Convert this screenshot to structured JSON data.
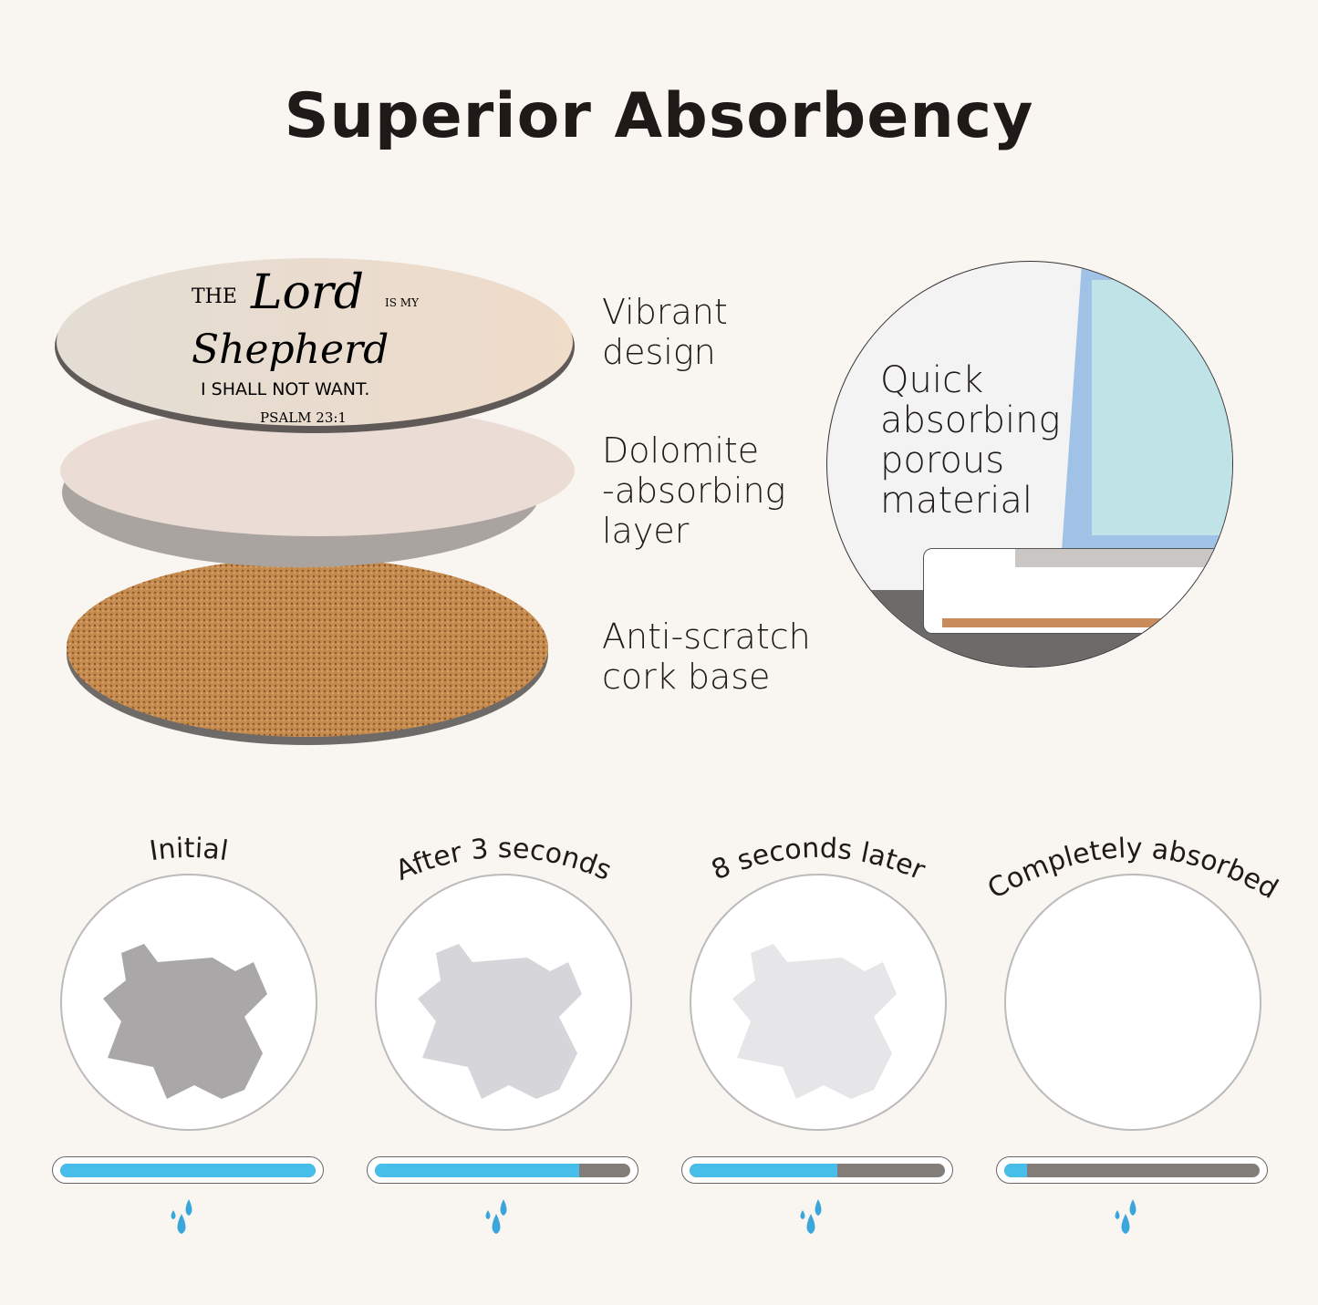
{
  "title": "Superior Absorbency",
  "coaster_print": {
    "line1": "THE",
    "line2": "Lord",
    "line3": "IS MY",
    "line4": "Shepherd",
    "line5": "I SHALL NOT WANT.",
    "reference": "PSALM 23:1"
  },
  "layers": [
    {
      "label": "Vibrant\ndesign"
    },
    {
      "label": "Dolomite\n-absorbing\nlayer"
    },
    {
      "label": "Anti-scratch\ncork base"
    }
  ],
  "callout": {
    "text": "Quick\nabsorbing\nporous\nmaterial"
  },
  "stages": [
    {
      "label": "Initial",
      "progress_pct": 100,
      "stain_color": "#a9a7a8"
    },
    {
      "label": "After 3 seconds",
      "progress_pct": 80,
      "stain_color": "#d6d5da"
    },
    {
      "label": "8  seconds later",
      "progress_pct": 58,
      "stain_color": "#e6e5e8"
    },
    {
      "label": "Completely absorbed",
      "progress_pct": 9,
      "stain_color": null
    }
  ],
  "colors": {
    "background": "#f9f5f1",
    "progress_fill": "#47bdea",
    "progress_track": "#837d79",
    "cork": "#c58a4e",
    "dolomite": "#ecdcd6"
  },
  "icons": {
    "stage_icon": "water-drops-icon"
  }
}
